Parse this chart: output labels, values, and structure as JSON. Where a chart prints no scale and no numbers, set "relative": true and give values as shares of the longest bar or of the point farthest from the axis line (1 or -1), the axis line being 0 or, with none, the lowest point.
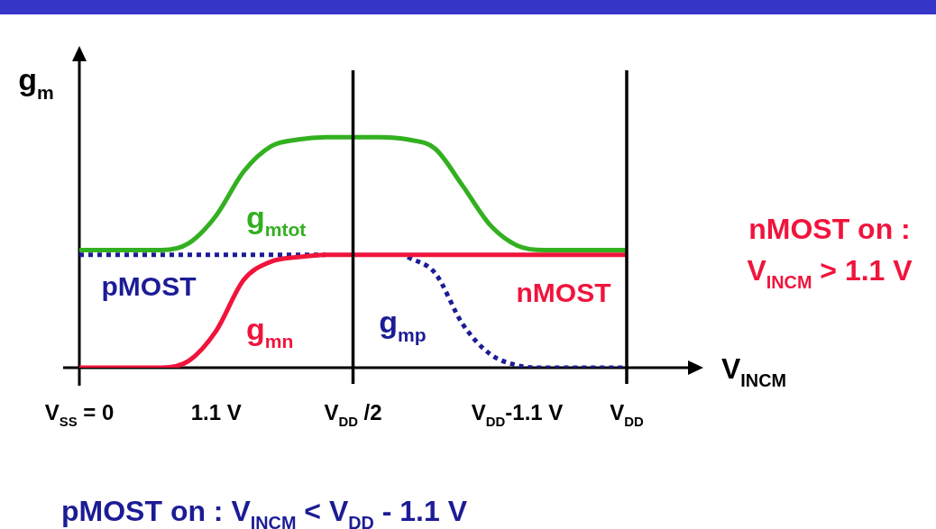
{
  "chart_data": {
    "type": "line",
    "relative": true,
    "ylabel": "g$_{m}$",
    "xlabel": "V$_{INCM}$",
    "categories": [
      "V$_{SS}$ = 0",
      null,
      null,
      null,
      null,
      "1.1 V",
      null,
      null,
      null,
      null,
      "V$_{DD}$ /2",
      null,
      null,
      null,
      null,
      null,
      "V$_{DD}$-1.1 V",
      null,
      null,
      null,
      "V$_{DD}$"
    ],
    "series": [
      {
        "name": "g$_{mtot}$",
        "color": "#33b020",
        "values": [
          0.51,
          0.51,
          0.51,
          0.51,
          0.54,
          0.66,
          0.85,
          0.96,
          0.99,
          1,
          1,
          1,
          0.99,
          0.95,
          0.79,
          0.62,
          0.53,
          0.51,
          0.51,
          0.51,
          0.51
        ]
      },
      {
        "name": "g$_{mn}$",
        "color": "#f0143c",
        "values": [
          0,
          0,
          0,
          0,
          0.03,
          0.16,
          0.38,
          0.46,
          0.48,
          0.49,
          0.49,
          0.49,
          0.49,
          0.49,
          0.49,
          0.49,
          0.49,
          0.49,
          0.49,
          0.49,
          0.49
        ]
      },
      {
        "name": "g$_{mp}$",
        "color": "#1c1c96",
        "line_style": "dotted",
        "values": [
          0.49,
          0.49,
          0.49,
          0.49,
          0.49,
          0.49,
          0.49,
          0.49,
          0.49,
          0.49,
          null,
          null,
          0.48,
          0.41,
          0.19,
          0.06,
          0.01,
          0,
          0,
          0,
          0
        ]
      }
    ],
    "ref_lines": [
      {
        "axis": "x",
        "value": "V$_{DD}$ /2"
      },
      {
        "axis": "x",
        "value": "V$_{DD}$"
      }
    ],
    "annotations": [
      "pMOST",
      "nMOST",
      "nMOST on : V$_{INCM}$ > 1.1 V",
      "pMOST on : V$_{INCM}$ < V$_{DD}$ - 1.1 V"
    ],
    "legend": false,
    "marker": "none"
  }
}
